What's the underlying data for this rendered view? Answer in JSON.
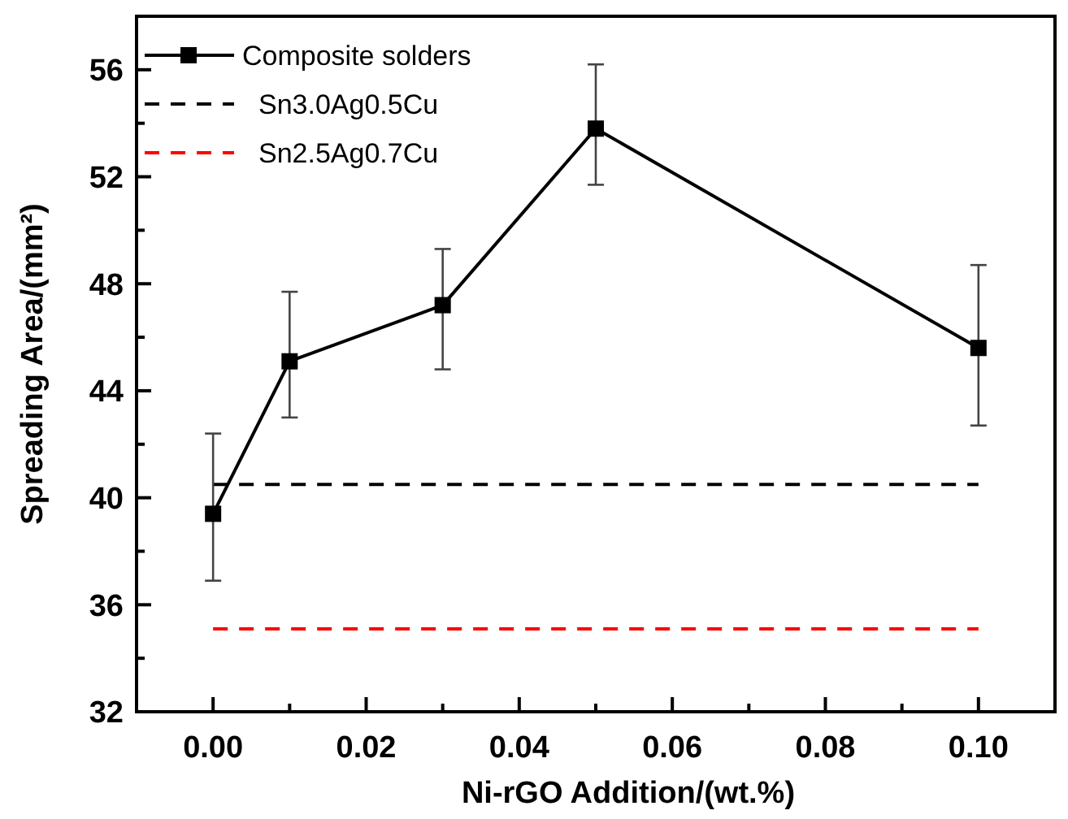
{
  "chart_data": {
    "type": "line",
    "xlabel": "Ni-rGO Addition/(wt.%)",
    "ylabel": "Spreading Area/(mm²)",
    "x": [
      0,
      0.01,
      0.03,
      0.05,
      0.1
    ],
    "series": [
      {
        "name": "Composite solders",
        "color": "#000000",
        "values": [
          39.4,
          45.1,
          47.2,
          53.8,
          45.6
        ],
        "errors": [
          [
            36.9,
            42.4
          ],
          [
            43.0,
            47.7
          ],
          [
            44.8,
            49.3
          ],
          [
            51.7,
            56.2
          ],
          [
            42.7,
            48.7
          ]
        ]
      }
    ],
    "ref_lines": [
      {
        "axis": "y",
        "value": 40.5,
        "label": "Sn3.0Ag0.5Cu",
        "color": "#000000",
        "line_style": "dashed"
      },
      {
        "axis": "y",
        "value": 35.1,
        "label": "Sn2.5Ag0.7Cu",
        "color": "#ff0000",
        "line_style": "dashed"
      }
    ],
    "xlim": [
      -0.01,
      0.11
    ],
    "ylim": [
      32,
      58
    ],
    "xticks": [
      {
        "value": 0,
        "label": "0.00"
      },
      {
        "value": 0.01,
        "label": null
      },
      {
        "value": 0.02,
        "label": "0.02"
      },
      {
        "value": 0.03,
        "label": null
      },
      {
        "value": 0.04,
        "label": "0.04"
      },
      {
        "value": 0.05,
        "label": null
      },
      {
        "value": 0.06,
        "label": "0.06"
      },
      {
        "value": 0.07,
        "label": null
      },
      {
        "value": 0.08,
        "label": "0.08"
      },
      {
        "value": 0.09,
        "label": null
      },
      {
        "value": 0.1,
        "label": "0.10"
      }
    ],
    "yticks": [
      32,
      {
        "value": 34,
        "label": null
      },
      36,
      {
        "value": 38,
        "label": null
      },
      40,
      {
        "value": 42,
        "label": null
      },
      44,
      {
        "value": 46,
        "label": null
      },
      48,
      {
        "value": 50,
        "label": null
      },
      52,
      {
        "value": 54,
        "label": null
      },
      56
    ],
    "legend": "top left",
    "marker": "square",
    "line_style": "solid",
    "grid": false
  }
}
